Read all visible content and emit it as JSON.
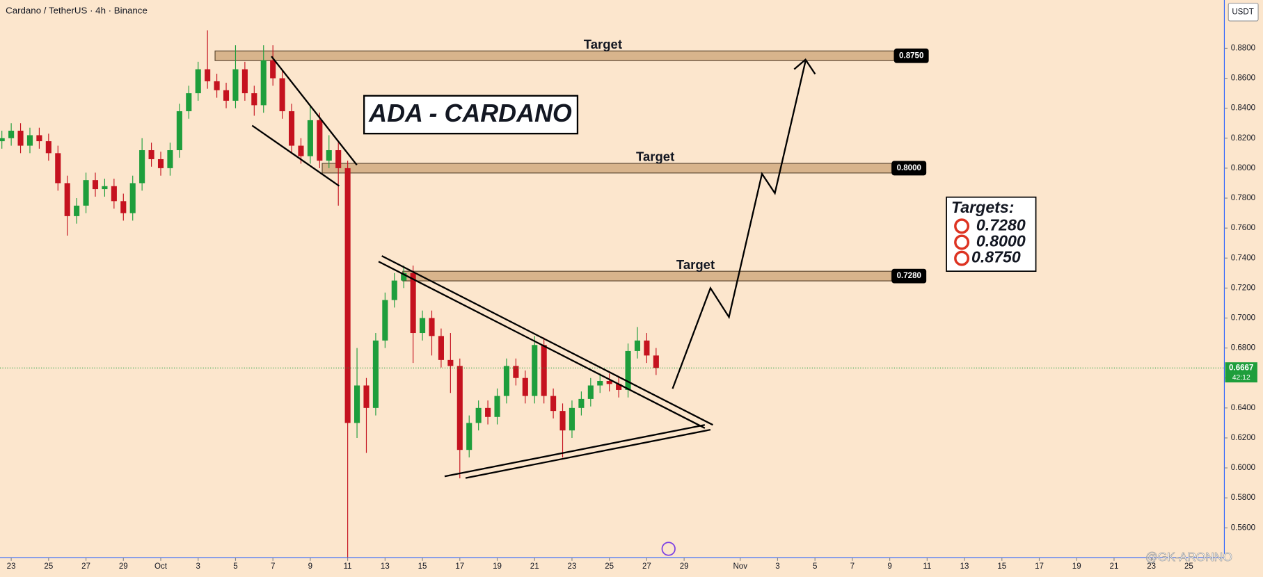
{
  "chart_data": {
    "type": "candlestick",
    "title": "Cardano / TetherUS · 4h · Binance",
    "currency": "USDT",
    "up_color": "#1e9e3c",
    "down_color": "#c5121f",
    "x": [
      -0.5,
      0,
      0.5,
      1,
      1.5,
      2,
      2.5,
      3,
      3.5,
      4,
      4.5,
      5,
      5.5,
      6,
      6.5,
      7,
      7.5,
      8,
      8.5,
      9,
      9.5,
      10,
      10.5,
      11,
      11.5,
      12,
      12.5,
      13,
      13.5,
      14,
      14.5,
      15,
      15.5,
      16,
      16.5,
      17,
      17.5,
      18,
      18.5,
      19,
      19.5,
      20,
      20.5,
      21,
      21.5,
      22,
      22.5,
      23,
      23.5,
      24,
      24.5,
      25,
      25.5,
      26,
      26.5,
      27,
      27.5,
      28,
      28.5,
      29,
      29.5,
      30,
      30.5,
      31,
      31.5,
      32,
      32.5,
      33,
      33.5,
      34,
      34.5
    ],
    "open": [
      0.818,
      0.82,
      0.825,
      0.815,
      0.822,
      0.818,
      0.81,
      0.79,
      0.768,
      0.775,
      0.792,
      0.786,
      0.788,
      0.778,
      0.77,
      0.79,
      0.812,
      0.806,
      0.8,
      0.812,
      0.838,
      0.85,
      0.866,
      0.858,
      0.852,
      0.845,
      0.866,
      0.85,
      0.842,
      0.872,
      0.86,
      0.838,
      0.815,
      0.808,
      0.832,
      0.805,
      0.812,
      0.8,
      0.63,
      0.655,
      0.64,
      0.685,
      0.712,
      0.725,
      0.73,
      0.69,
      0.7,
      0.688,
      0.672,
      0.668,
      0.612,
      0.63,
      0.64,
      0.634,
      0.648,
      0.668,
      0.66,
      0.648,
      0.682,
      0.648,
      0.638,
      0.625,
      0.64,
      0.646,
      0.655,
      0.658,
      0.656,
      0.652,
      0.678,
      0.685,
      0.675
    ],
    "high": [
      0.825,
      0.83,
      0.83,
      0.827,
      0.827,
      0.823,
      0.815,
      0.795,
      0.78,
      0.797,
      0.797,
      0.793,
      0.793,
      0.783,
      0.795,
      0.82,
      0.817,
      0.811,
      0.817,
      0.843,
      0.855,
      0.871,
      0.892,
      0.863,
      0.857,
      0.882,
      0.871,
      0.855,
      0.882,
      0.882,
      0.865,
      0.843,
      0.82,
      0.842,
      0.837,
      0.822,
      0.817,
      0.805,
      0.68,
      0.66,
      0.69,
      0.717,
      0.73,
      0.735,
      0.735,
      0.705,
      0.705,
      0.693,
      0.69,
      0.673,
      0.635,
      0.645,
      0.645,
      0.653,
      0.673,
      0.673,
      0.665,
      0.688,
      0.687,
      0.653,
      0.643,
      0.645,
      0.651,
      0.66,
      0.663,
      0.663,
      0.661,
      0.683,
      0.694,
      0.69,
      0.68
    ],
    "low": [
      0.813,
      0.815,
      0.81,
      0.81,
      0.813,
      0.805,
      0.785,
      0.755,
      0.763,
      0.77,
      0.781,
      0.781,
      0.773,
      0.765,
      0.765,
      0.785,
      0.801,
      0.795,
      0.795,
      0.807,
      0.833,
      0.845,
      0.853,
      0.847,
      0.84,
      0.84,
      0.845,
      0.835,
      0.837,
      0.855,
      0.833,
      0.81,
      0.803,
      0.803,
      0.8,
      0.8,
      0.775,
      0.54,
      0.62,
      0.61,
      0.635,
      0.68,
      0.707,
      0.72,
      0.67,
      0.685,
      0.675,
      0.667,
      0.65,
      0.593,
      0.607,
      0.625,
      0.629,
      0.629,
      0.643,
      0.655,
      0.643,
      0.643,
      0.643,
      0.633,
      0.607,
      0.62,
      0.635,
      0.641,
      0.65,
      0.651,
      0.647,
      0.647,
      0.673,
      0.67,
      0.662
    ],
    "close": [
      0.82,
      0.825,
      0.815,
      0.822,
      0.818,
      0.81,
      0.79,
      0.768,
      0.775,
      0.792,
      0.786,
      0.788,
      0.778,
      0.77,
      0.79,
      0.812,
      0.806,
      0.8,
      0.812,
      0.838,
      0.85,
      0.866,
      0.858,
      0.852,
      0.845,
      0.866,
      0.85,
      0.842,
      0.872,
      0.86,
      0.838,
      0.815,
      0.808,
      0.832,
      0.805,
      0.812,
      0.8,
      0.63,
      0.655,
      0.64,
      0.685,
      0.712,
      0.725,
      0.73,
      0.69,
      0.7,
      0.688,
      0.672,
      0.668,
      0.612,
      0.63,
      0.64,
      0.634,
      0.648,
      0.668,
      0.66,
      0.648,
      0.682,
      0.648,
      0.638,
      0.625,
      0.64,
      0.646,
      0.655,
      0.658,
      0.656,
      0.652,
      0.678,
      0.685,
      0.675,
      0.6667
    ],
    "xlim": [
      -0.6,
      64.9
    ],
    "ylim": [
      0.5401,
      0.9122
    ],
    "grid": false,
    "xticks": [
      {
        "value": 0,
        "label": "23"
      },
      {
        "value": 2,
        "label": "25"
      },
      {
        "value": 4,
        "label": "27"
      },
      {
        "value": 6,
        "label": "29"
      },
      {
        "value": 8,
        "label": "Oct"
      },
      {
        "value": 10,
        "label": "3"
      },
      {
        "value": 12,
        "label": "5"
      },
      {
        "value": 14,
        "label": "7"
      },
      {
        "value": 16,
        "label": "9"
      },
      {
        "value": 18,
        "label": "11"
      },
      {
        "value": 20,
        "label": "13"
      },
      {
        "value": 22,
        "label": "15"
      },
      {
        "value": 24,
        "label": "17"
      },
      {
        "value": 26,
        "label": "19"
      },
      {
        "value": 28,
        "label": "21"
      },
      {
        "value": 30,
        "label": "23"
      },
      {
        "value": 32,
        "label": "25"
      },
      {
        "value": 34,
        "label": "27"
      },
      {
        "value": 36,
        "label": "29"
      },
      {
        "value": 39,
        "label": "Nov"
      },
      {
        "value": 41,
        "label": "3"
      },
      {
        "value": 43,
        "label": "5"
      },
      {
        "value": 45,
        "label": "7"
      },
      {
        "value": 47,
        "label": "9"
      },
      {
        "value": 49,
        "label": "11"
      },
      {
        "value": 51,
        "label": "13"
      },
      {
        "value": 53,
        "label": "15"
      },
      {
        "value": 55,
        "label": "17"
      },
      {
        "value": 57,
        "label": "19"
      },
      {
        "value": 59,
        "label": "21"
      },
      {
        "value": 61,
        "label": "23"
      },
      {
        "value": 63,
        "label": "25"
      }
    ],
    "yticks": [
      {
        "value": 0.56,
        "label": "0.5600"
      },
      {
        "value": 0.58,
        "label": "0.5800"
      },
      {
        "value": 0.6,
        "label": "0.6000"
      },
      {
        "value": 0.62,
        "label": "0.6200"
      },
      {
        "value": 0.64,
        "label": "0.6400"
      },
      {
        "value": 0.66,
        "label": "0.6600"
      },
      {
        "value": 0.68,
        "label": "0.6800"
      },
      {
        "value": 0.7,
        "label": "0.7000"
      },
      {
        "value": 0.72,
        "label": "0.7200"
      },
      {
        "value": 0.74,
        "label": "0.7400"
      },
      {
        "value": 0.76,
        "label": "0.7600"
      },
      {
        "value": 0.78,
        "label": "0.7800"
      },
      {
        "value": 0.8,
        "label": "0.8000"
      },
      {
        "value": 0.82,
        "label": "0.8200"
      },
      {
        "value": 0.84,
        "label": "0.8400"
      },
      {
        "value": 0.86,
        "label": "0.8600"
      },
      {
        "value": 0.88,
        "label": "0.8800"
      }
    ],
    "last_price": {
      "value": 0.6667,
      "label": "0.6667"
    },
    "countdown": "42:12",
    "annotations": {
      "headline": "ADA - CARDANO",
      "targets": [
        {
          "value": 0.875,
          "label": "0.8750",
          "text": "Target"
        },
        {
          "value": 0.8,
          "label": "0.8000",
          "text": "Target"
        },
        {
          "value": 0.728,
          "label": "0.7280",
          "text": "Target"
        }
      ],
      "targets_box": {
        "title": "Targets:",
        "items": [
          "0.7280",
          "0.8000",
          "0.8750"
        ]
      },
      "watermark": "@GK-ARONNO"
    }
  }
}
